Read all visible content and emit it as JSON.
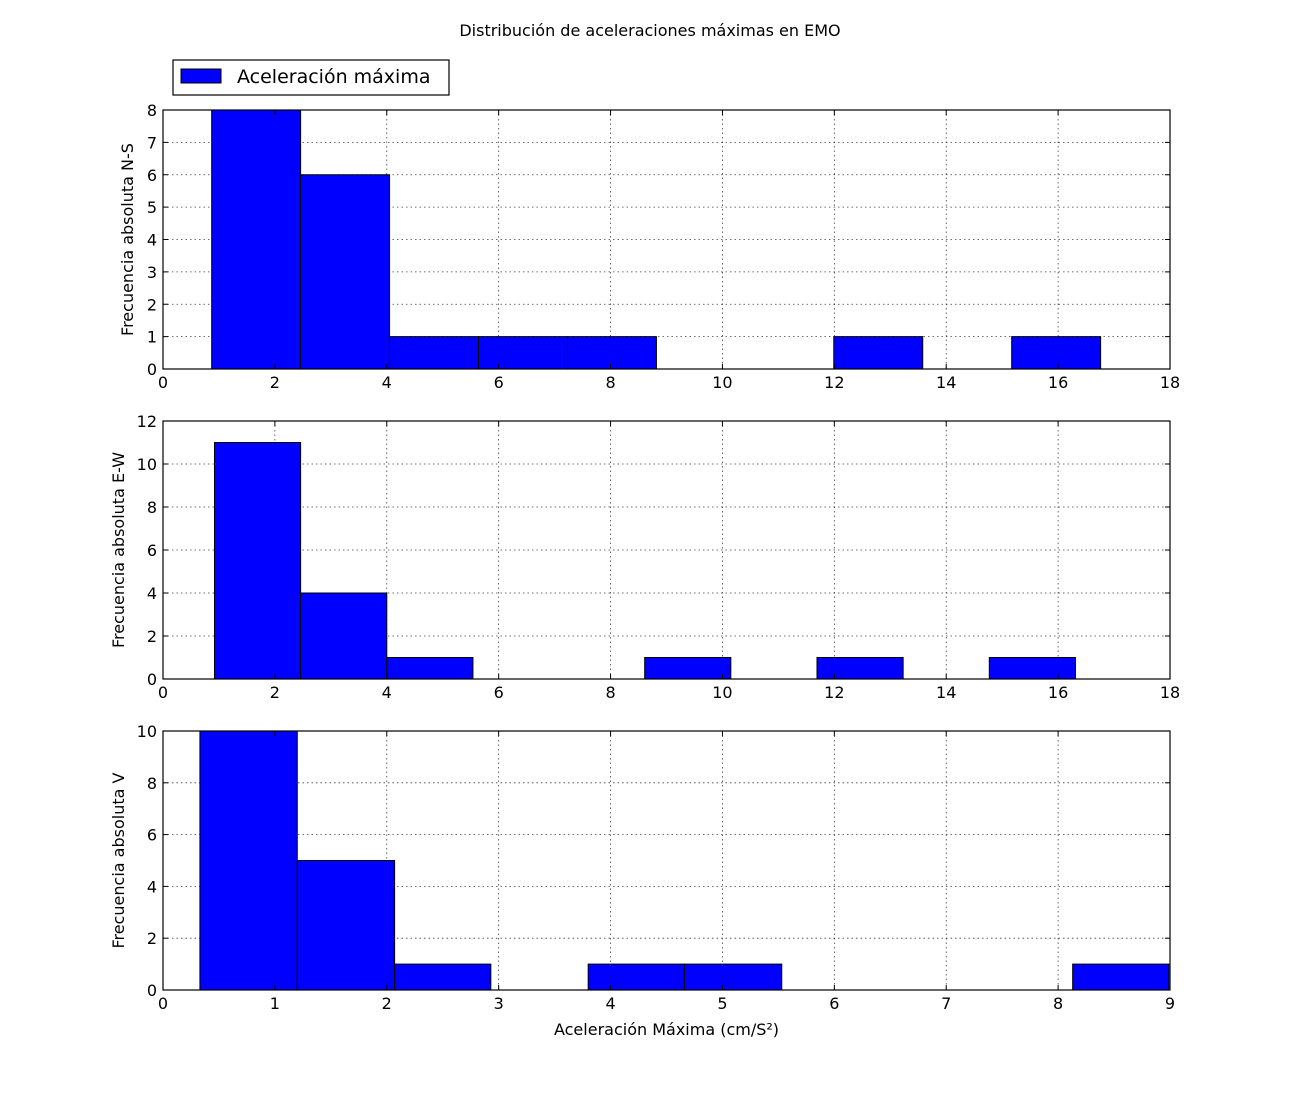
{
  "title": "Distribución de aceleraciones máximas en EMO",
  "legend": {
    "label": "Aceleración máxima",
    "placement": "top-left, above first panel"
  },
  "colors": {
    "bar": "#0000ff",
    "edge": "#000000"
  },
  "chart_data": [
    {
      "type": "bar",
      "subtype": "histogram",
      "ylabel": "Frecuencia absoluta N-S",
      "xlabel": "",
      "xlim": [
        0,
        18
      ],
      "ylim": [
        0,
        8
      ],
      "xticks": [
        0,
        2,
        4,
        6,
        8,
        10,
        12,
        14,
        16,
        18
      ],
      "yticks": [
        0,
        1,
        2,
        3,
        4,
        5,
        6,
        7,
        8
      ],
      "grid": true,
      "bins": [
        {
          "x0": 0.87,
          "x1": 2.46,
          "value": 8
        },
        {
          "x0": 2.46,
          "x1": 4.05,
          "value": 6
        },
        {
          "x0": 4.05,
          "x1": 5.64,
          "value": 1
        },
        {
          "x0": 5.64,
          "x1": 7.23,
          "value": 1
        },
        {
          "x0": 7.23,
          "x1": 8.82,
          "value": 1
        },
        {
          "x0": 11.99,
          "x1": 13.58,
          "value": 1
        },
        {
          "x0": 15.17,
          "x1": 16.76,
          "value": 1
        }
      ]
    },
    {
      "type": "bar",
      "subtype": "histogram",
      "ylabel": "Frecuencia absoluta E-W",
      "xlabel": "",
      "xlim": [
        0,
        18
      ],
      "ylim": [
        0,
        12
      ],
      "xticks": [
        0,
        2,
        4,
        6,
        8,
        10,
        12,
        14,
        16,
        18
      ],
      "yticks": [
        0,
        2,
        4,
        6,
        8,
        10,
        12
      ],
      "grid": true,
      "bins": [
        {
          "x0": 0.92,
          "x1": 2.46,
          "value": 11
        },
        {
          "x0": 2.46,
          "x1": 4.0,
          "value": 4
        },
        {
          "x0": 4.0,
          "x1": 5.54,
          "value": 1
        },
        {
          "x0": 8.61,
          "x1": 10.15,
          "value": 1
        },
        {
          "x0": 11.69,
          "x1": 13.23,
          "value": 1
        },
        {
          "x0": 14.77,
          "x1": 16.31,
          "value": 1
        }
      ]
    },
    {
      "type": "bar",
      "subtype": "histogram",
      "ylabel": "Frecuencia absoluta V",
      "xlabel": "Aceleración Máxima (cm/S²)",
      "xlim": [
        0,
        9
      ],
      "ylim": [
        0,
        10
      ],
      "xticks": [
        0,
        1,
        2,
        3,
        4,
        5,
        6,
        7,
        8,
        9
      ],
      "yticks": [
        0,
        2,
        4,
        6,
        8,
        10
      ],
      "grid": true,
      "bins": [
        {
          "x0": 0.33,
          "x1": 1.2,
          "value": 10
        },
        {
          "x0": 1.2,
          "x1": 2.07,
          "value": 5
        },
        {
          "x0": 2.07,
          "x1": 2.93,
          "value": 1
        },
        {
          "x0": 3.8,
          "x1": 4.66,
          "value": 1
        },
        {
          "x0": 4.66,
          "x1": 5.53,
          "value": 1
        },
        {
          "x0": 8.13,
          "x1": 8.99,
          "value": 1
        }
      ]
    }
  ]
}
